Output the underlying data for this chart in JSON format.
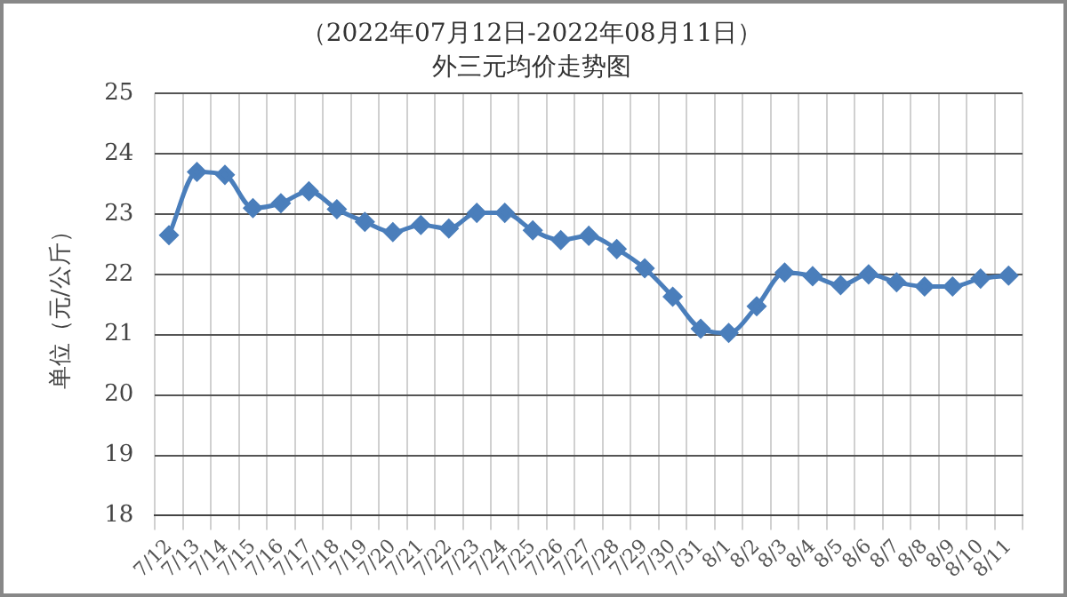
{
  "chart_data": {
    "type": "line",
    "title": "（2022年07月12日-2022年08月11日）",
    "subtitle": "外三元均价走势图",
    "ylabel": "单位（元/公斤）",
    "categories": [
      "7/12",
      "7/13",
      "7/14",
      "7/15",
      "7/16",
      "7/17",
      "7/18",
      "7/19",
      "7/20",
      "7/21",
      "7/22",
      "7/23",
      "7/24",
      "7/25",
      "7/26",
      "7/27",
      "7/28",
      "7/29",
      "7/30",
      "7/31",
      "8/1",
      "8/2",
      "8/3",
      "8/4",
      "8/5",
      "8/6",
      "8/7",
      "8/8",
      "8/9",
      "8/10",
      "8/11"
    ],
    "series": [
      {
        "color": "#4a7ebb",
        "values": [
          22.65,
          23.7,
          23.65,
          23.1,
          23.18,
          23.38,
          23.08,
          22.87,
          22.7,
          22.82,
          22.76,
          23.02,
          23.02,
          22.73,
          22.57,
          22.64,
          22.42,
          22.1,
          21.63,
          21.1,
          21.03,
          21.47,
          22.03,
          21.97,
          21.82,
          22.0,
          21.87,
          21.8,
          21.8,
          21.93,
          21.98
        ]
      }
    ],
    "ylim": [
      18,
      25
    ],
    "yticks": [
      18,
      19,
      20,
      21,
      22,
      23,
      24,
      25
    ],
    "grid": true,
    "legend": false,
    "marker": "diamond",
    "line_style": "solid"
  }
}
